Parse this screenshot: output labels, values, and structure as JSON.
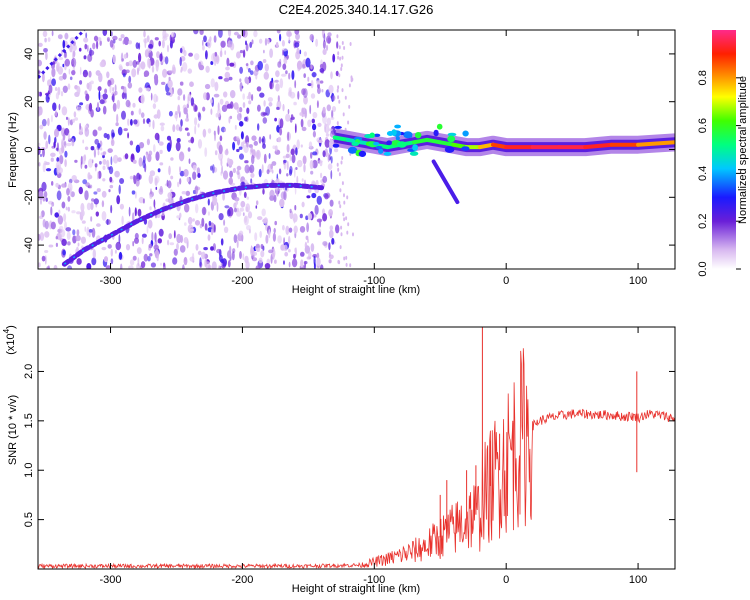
{
  "title": "C2E4.2025.340.14.17.G26",
  "chart_data": [
    {
      "type": "heatmap",
      "name": "spectrogram",
      "xlabel": "Height of straight line (km)",
      "ylabel": "Frequency (Hz)",
      "xlim": [
        -355,
        128
      ],
      "ylim": [
        -50,
        50
      ],
      "xticks": [
        -300,
        -200,
        -100,
        0,
        100
      ],
      "xtick_labels": [
        "-300",
        "-200",
        "-100",
        "0",
        "100"
      ],
      "yticks": [
        -40,
        -20,
        0,
        20,
        40
      ],
      "ytick_labels": [
        "-40",
        "-20",
        "0",
        "20",
        "40"
      ],
      "noise_region_x": [
        -355,
        -128
      ],
      "tone_track": {
        "x": [
          -130,
          -120,
          -110,
          -100,
          -90,
          -80,
          -70,
          -60,
          -50,
          -40,
          -30,
          -20,
          -10,
          0,
          20,
          40,
          60,
          80,
          100,
          128
        ],
        "y": [
          5,
          4,
          3,
          2,
          1,
          2,
          3,
          4,
          3,
          2,
          1,
          1,
          2,
          1,
          1,
          1,
          1,
          2,
          2,
          3
        ],
        "amplitude": [
          0.55,
          0.5,
          0.45,
          0.5,
          0.55,
          0.5,
          0.55,
          0.6,
          0.55,
          0.6,
          0.65,
          0.7,
          0.85,
          0.9,
          0.95,
          0.95,
          0.95,
          0.9,
          0.85,
          0.75
        ]
      },
      "chirp_track": {
        "x": [
          -335,
          -320,
          -300,
          -280,
          -260,
          -240,
          -220,
          -200,
          -180,
          -160,
          -140
        ],
        "y": [
          -48,
          -42,
          -36,
          -30,
          -25,
          -21,
          -18,
          -16,
          -15,
          -15,
          -16
        ]
      },
      "colorbar": {
        "label": "Normalized spectral amplitude",
        "ticks": [
          0.0,
          0.2,
          0.4,
          0.6,
          0.8
        ],
        "tick_labels": [
          "0.0",
          "0.2",
          "0.4",
          "0.6",
          "0.8"
        ],
        "range": [
          0,
          1
        ]
      }
    },
    {
      "type": "line",
      "name": "snr",
      "xlabel": "Height of straight line (km)",
      "ylabel": "SNR (10 * v/v)",
      "exponent_label": "(x10",
      "exponent_power": "4",
      "exponent_close": ")",
      "xlim": [
        -355,
        128
      ],
      "ylim": [
        0,
        2.45
      ],
      "xticks": [
        -300,
        -200,
        -100,
        0,
        100
      ],
      "xtick_labels": [
        "-300",
        "-200",
        "-100",
        "0",
        "100"
      ],
      "yticks": [
        0.5,
        1.0,
        1.5,
        2.0
      ],
      "ytick_labels": [
        "0.5",
        "1.0",
        "1.5",
        "2.0"
      ],
      "color": "#e8312c",
      "series": [
        {
          "name": "SNR",
          "x": [
            -355,
            -300,
            -250,
            -200,
            -150,
            -110,
            -100,
            -90,
            -80,
            -70,
            -60,
            -50,
            -40,
            -35,
            -30,
            -25,
            -20,
            -18,
            -15,
            -10,
            -5,
            0,
            5,
            10,
            15,
            20,
            25,
            30,
            40,
            50,
            60,
            70,
            80,
            90,
            95,
            100,
            105,
            110,
            120,
            128
          ],
          "y": [
            0.03,
            0.03,
            0.03,
            0.03,
            0.03,
            0.04,
            0.07,
            0.1,
            0.14,
            0.18,
            0.24,
            0.32,
            0.4,
            0.45,
            0.5,
            0.55,
            0.55,
            0.8,
            0.75,
            0.9,
            1.0,
            1.1,
            1.2,
            1.3,
            1.38,
            1.45,
            1.5,
            1.52,
            1.55,
            1.57,
            1.57,
            1.56,
            1.56,
            1.54,
            1.55,
            1.53,
            1.56,
            1.57,
            1.55,
            1.52
          ]
        }
      ],
      "spikes": [
        {
          "x": -18,
          "y": 2.45
        },
        {
          "x": -50,
          "y": 0.75
        },
        {
          "x": -45,
          "y": 0.9
        },
        {
          "x": -30,
          "y": 1.0
        },
        {
          "x": -23,
          "y": 1.05
        },
        {
          "x": -12,
          "y": 1.3
        },
        {
          "x": -5,
          "y": 1.37
        },
        {
          "x": 5,
          "y": 1.5
        },
        {
          "x": 99,
          "y": 2.0
        },
        {
          "x": 99,
          "y": 0.98
        }
      ]
    }
  ]
}
